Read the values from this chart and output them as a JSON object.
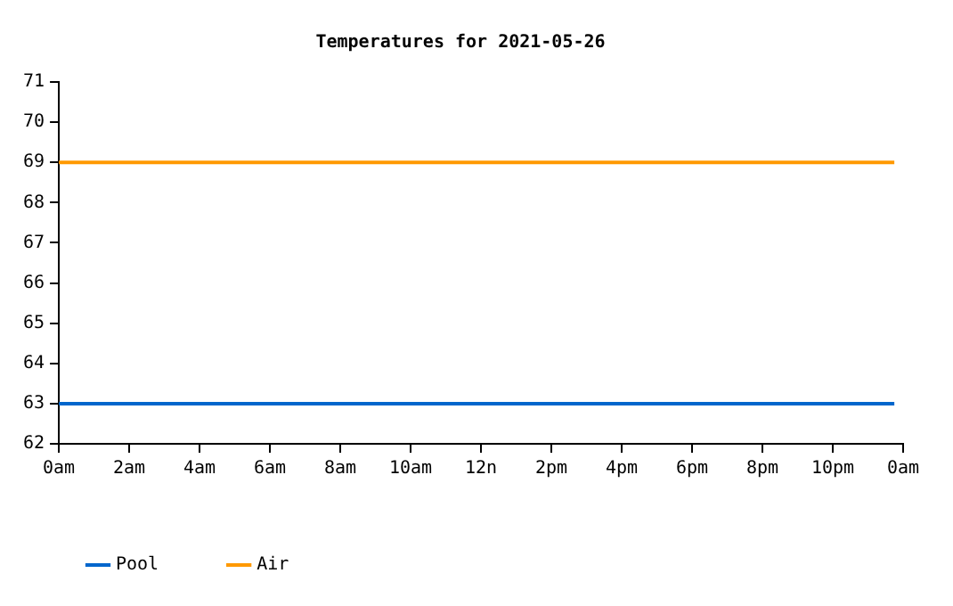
{
  "chart_data": {
    "type": "line",
    "title": "Temperatures for 2021-05-26",
    "xlim": [
      "2021-05-26T00:00",
      "2021-05-27T00:00"
    ],
    "xticks": [
      {
        "value": "2021-05-26T00:00",
        "label": "0am"
      },
      {
        "value": "2021-05-26T02:00",
        "label": "2am"
      },
      {
        "value": "2021-05-26T04:00",
        "label": "4am"
      },
      {
        "value": "2021-05-26T06:00",
        "label": "6am"
      },
      {
        "value": "2021-05-26T08:00",
        "label": "8am"
      },
      {
        "value": "2021-05-26T10:00",
        "label": "10am"
      },
      {
        "value": "2021-05-26T12:00",
        "label": "12n"
      },
      {
        "value": "2021-05-26T14:00",
        "label": "2pm"
      },
      {
        "value": "2021-05-26T16:00",
        "label": "4pm"
      },
      {
        "value": "2021-05-26T18:00",
        "label": "6pm"
      },
      {
        "value": "2021-05-26T20:00",
        "label": "8pm"
      },
      {
        "value": "2021-05-26T22:00",
        "label": "10pm"
      },
      {
        "value": "2021-05-27T00:00",
        "label": "0am"
      }
    ],
    "ylim": [
      62,
      71
    ],
    "yticks": [
      62,
      63,
      64,
      65,
      66,
      67,
      68,
      69,
      70,
      71
    ],
    "series": [
      {
        "name": "Pool",
        "color": "#0066cc",
        "x": [
          "2021-05-26T00:00",
          "2021-05-26T23:45"
        ],
        "values": [
          63,
          63
        ]
      },
      {
        "name": "Air",
        "color": "#ff9900",
        "x": [
          "2021-05-26T00:00",
          "2021-05-26T23:45"
        ],
        "values": [
          69,
          69
        ]
      }
    ],
    "grid": false,
    "legend": "bottom left",
    "marker": "none",
    "line_style": "solid"
  }
}
